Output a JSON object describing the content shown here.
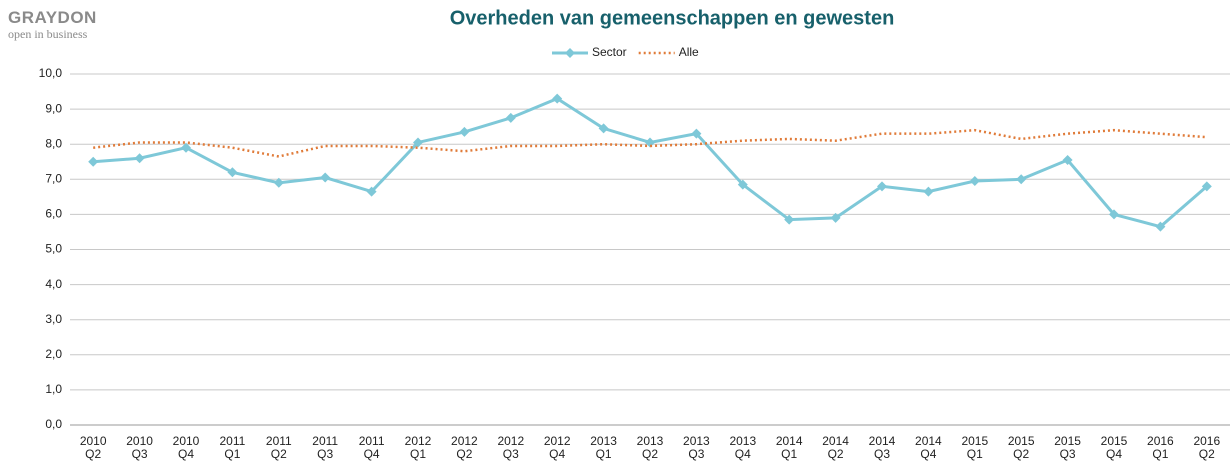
{
  "logo": {
    "name": "GRAYDON",
    "tagline": "open in business"
  },
  "chart_data": {
    "type": "line",
    "title": "Overheden van gemeenschappen en gewesten",
    "categories": [
      "2010 Q2",
      "2010 Q3",
      "2010 Q4",
      "2011 Q1",
      "2011 Q2",
      "2011 Q3",
      "2011 Q4",
      "2012 Q1",
      "2012 Q2",
      "2012 Q3",
      "2012 Q4",
      "2013 Q1",
      "2013 Q2",
      "2013 Q3",
      "2013 Q4",
      "2014 Q1",
      "2014 Q2",
      "2014 Q3",
      "2014 Q4",
      "2015 Q1",
      "2015 Q2",
      "2015 Q3",
      "2015 Q4",
      "2016 Q1",
      "2016 Q2"
    ],
    "series": [
      {
        "name": "Sector",
        "color": "#7ec8d8",
        "marker": "diamond",
        "values": [
          7.5,
          7.6,
          7.9,
          7.2,
          6.9,
          7.05,
          6.65,
          8.05,
          8.35,
          8.75,
          9.3,
          8.45,
          8.05,
          8.3,
          6.85,
          5.85,
          5.9,
          6.8,
          6.65,
          6.95,
          7.0,
          7.55,
          6.0,
          5.65,
          6.8
        ]
      },
      {
        "name": "Alle",
        "color": "#e07b39",
        "dash": "dotted",
        "values": [
          7.9,
          8.05,
          8.05,
          7.9,
          7.65,
          7.95,
          7.95,
          7.9,
          7.8,
          7.95,
          7.95,
          8.0,
          7.95,
          8.0,
          8.1,
          8.15,
          8.1,
          8.3,
          8.3,
          8.4,
          8.15,
          8.3,
          8.4,
          8.3,
          8.2
        ]
      }
    ],
    "ylim": [
      0,
      10
    ],
    "yticks": [
      {
        "value": 0,
        "label": "0,0"
      },
      {
        "value": 1,
        "label": "1,0"
      },
      {
        "value": 2,
        "label": "2,0"
      },
      {
        "value": 3,
        "label": "3,0"
      },
      {
        "value": 4,
        "label": "4,0"
      },
      {
        "value": 5,
        "label": "5,0"
      },
      {
        "value": 6,
        "label": "6,0"
      },
      {
        "value": 7,
        "label": "7,0"
      },
      {
        "value": 8,
        "label": "8,0"
      },
      {
        "value": 9,
        "label": "9,0"
      },
      {
        "value": 10,
        "label": "10,0"
      }
    ],
    "grid": true,
    "legend": "top"
  }
}
